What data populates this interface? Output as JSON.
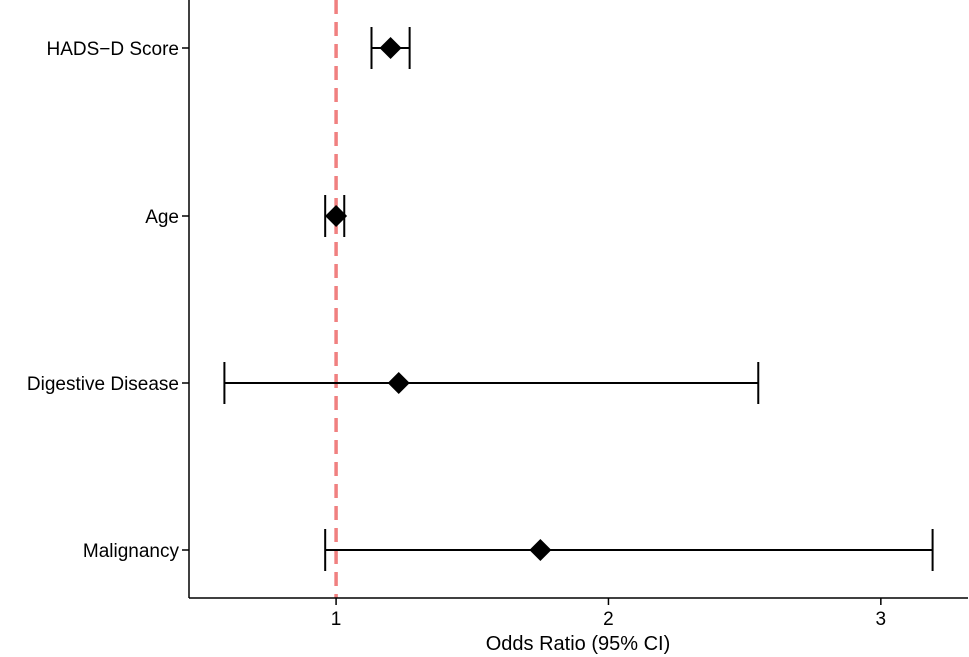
{
  "chart_data": {
    "type": "forest",
    "title": "",
    "xlabel": "Odds Ratio (95% CI)",
    "ylabel": "",
    "xlim": [
      0.46,
      3.32
    ],
    "xticks": [
      1,
      2,
      3
    ],
    "grid": false,
    "legend": "none",
    "reference_line": {
      "x": 1,
      "style": "dashed",
      "color": "#F08080"
    },
    "marker": "diamond",
    "colors": {
      "point": "#000000",
      "errorbar": "#000000",
      "axis": "#000000"
    },
    "categories": [
      "HADS−D Score",
      "Age",
      "Digestive Disease",
      "Malignancy"
    ],
    "estimates": [
      1.2,
      1.0,
      1.23,
      1.75
    ],
    "lower": [
      1.13,
      0.96,
      0.59,
      0.96
    ],
    "upper": [
      1.27,
      1.03,
      2.55,
      3.19
    ]
  }
}
